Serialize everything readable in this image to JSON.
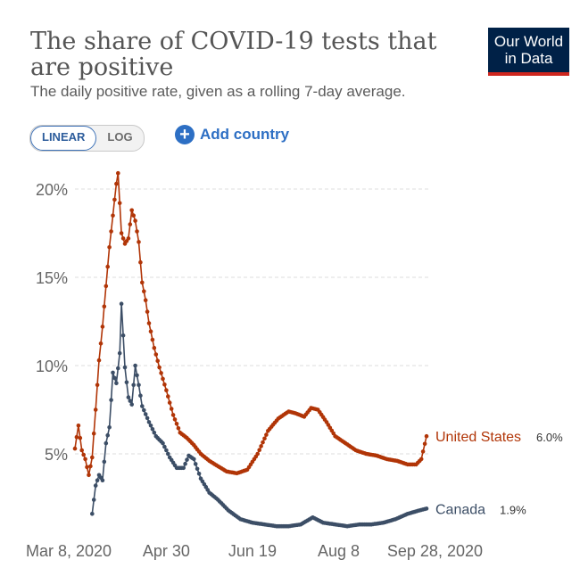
{
  "header": {
    "title": "The share of COVID-19 tests that are positive",
    "subtitle": "The daily positive rate, given as a rolling 7-day average."
  },
  "logo": {
    "line1": "Our World",
    "line2": "in Data",
    "bg_color": "#002147",
    "accent_color": "#ce261e"
  },
  "controls": {
    "linear_label": "LINEAR",
    "log_label": "LOG",
    "active_scale": "linear",
    "add_country_label": "Add country",
    "accent_color": "#2d6fc4"
  },
  "chart_data": {
    "type": "line",
    "title": "The share of COVID-19 tests that are positive",
    "subtitle": "The daily positive rate, given as a rolling 7-day average.",
    "xlabel": "",
    "ylabel": "",
    "x_ticks": [
      "Mar 8, 2020",
      "Apr 30",
      "Jun 19",
      "Aug 8",
      "Sep 28, 2020"
    ],
    "x_range": [
      "2020-03-08",
      "2020-09-28"
    ],
    "y_ticks": [
      "5%",
      "10%",
      "15%",
      "20%"
    ],
    "ylim": [
      0,
      21
    ],
    "y_unit": "%",
    "grid": "horizontal dashed",
    "legend": "end-of-line labels",
    "series": [
      {
        "name": "United States",
        "color": "#b13507",
        "end_label": "6.0%",
        "points": [
          [
            "2020-03-08",
            5.3
          ],
          [
            "2020-03-10",
            6.6
          ],
          [
            "2020-03-12",
            5.2
          ],
          [
            "2020-03-14",
            4.7
          ],
          [
            "2020-03-16",
            3.8
          ],
          [
            "2020-03-18",
            4.8
          ],
          [
            "2020-03-20",
            7.5
          ],
          [
            "2020-03-22",
            10.3
          ],
          [
            "2020-03-24",
            12.2
          ],
          [
            "2020-03-26",
            14.5
          ],
          [
            "2020-03-28",
            16.7
          ],
          [
            "2020-03-30",
            18.5
          ],
          [
            "2020-04-01",
            20.3
          ],
          [
            "2020-04-02",
            20.9
          ],
          [
            "2020-04-04",
            17.5
          ],
          [
            "2020-04-06",
            16.9
          ],
          [
            "2020-04-08",
            17.2
          ],
          [
            "2020-04-10",
            18.8
          ],
          [
            "2020-04-12",
            18.2
          ],
          [
            "2020-04-14",
            17.0
          ],
          [
            "2020-04-16",
            14.7
          ],
          [
            "2020-04-18",
            13.7
          ],
          [
            "2020-04-20",
            12.4
          ],
          [
            "2020-04-23",
            11.0
          ],
          [
            "2020-04-26",
            9.9
          ],
          [
            "2020-04-30",
            8.6
          ],
          [
            "2020-05-04",
            7.2
          ],
          [
            "2020-05-08",
            6.2
          ],
          [
            "2020-05-12",
            5.9
          ],
          [
            "2020-05-16",
            5.5
          ],
          [
            "2020-05-20",
            5.0
          ],
          [
            "2020-05-25",
            4.6
          ],
          [
            "2020-05-30",
            4.3
          ],
          [
            "2020-06-04",
            4.0
          ],
          [
            "2020-06-10",
            3.9
          ],
          [
            "2020-06-16",
            4.1
          ],
          [
            "2020-06-22",
            5.0
          ],
          [
            "2020-06-28",
            6.3
          ],
          [
            "2020-07-04",
            7.0
          ],
          [
            "2020-07-10",
            7.4
          ],
          [
            "2020-07-14",
            7.3
          ],
          [
            "2020-07-19",
            7.1
          ],
          [
            "2020-07-23",
            7.6
          ],
          [
            "2020-07-27",
            7.5
          ],
          [
            "2020-08-01",
            6.8
          ],
          [
            "2020-08-06",
            6.0
          ],
          [
            "2020-08-12",
            5.6
          ],
          [
            "2020-08-18",
            5.2
          ],
          [
            "2020-08-24",
            5.0
          ],
          [
            "2020-08-30",
            4.9
          ],
          [
            "2020-09-05",
            4.7
          ],
          [
            "2020-09-11",
            4.6
          ],
          [
            "2020-09-17",
            4.4
          ],
          [
            "2020-09-22",
            4.4
          ],
          [
            "2020-09-25",
            4.7
          ],
          [
            "2020-09-28",
            6.0
          ]
        ]
      },
      {
        "name": "Canada",
        "color": "#3c4e66",
        "end_label": "1.9%",
        "points": [
          [
            "2020-03-18",
            1.6
          ],
          [
            "2020-03-20",
            3.2
          ],
          [
            "2020-03-22",
            3.8
          ],
          [
            "2020-03-24",
            3.5
          ],
          [
            "2020-03-26",
            5.6
          ],
          [
            "2020-03-28",
            6.5
          ],
          [
            "2020-03-30",
            9.6
          ],
          [
            "2020-04-01",
            9.0
          ],
          [
            "2020-04-03",
            10.7
          ],
          [
            "2020-04-04",
            13.5
          ],
          [
            "2020-04-06",
            9.9
          ],
          [
            "2020-04-08",
            8.2
          ],
          [
            "2020-04-10",
            7.8
          ],
          [
            "2020-04-12",
            10.0
          ],
          [
            "2020-04-14",
            8.9
          ],
          [
            "2020-04-16",
            7.7
          ],
          [
            "2020-04-20",
            6.8
          ],
          [
            "2020-04-24",
            6.0
          ],
          [
            "2020-04-28",
            5.6
          ],
          [
            "2020-05-02",
            4.8
          ],
          [
            "2020-05-06",
            4.2
          ],
          [
            "2020-05-10",
            4.2
          ],
          [
            "2020-05-13",
            4.9
          ],
          [
            "2020-05-16",
            4.7
          ],
          [
            "2020-05-20",
            3.6
          ],
          [
            "2020-05-25",
            2.8
          ],
          [
            "2020-05-30",
            2.4
          ],
          [
            "2020-06-05",
            1.8
          ],
          [
            "2020-06-12",
            1.3
          ],
          [
            "2020-06-19",
            1.1
          ],
          [
            "2020-06-26",
            1.0
          ],
          [
            "2020-07-03",
            0.9
          ],
          [
            "2020-07-10",
            0.9
          ],
          [
            "2020-07-17",
            1.0
          ],
          [
            "2020-07-24",
            1.4
          ],
          [
            "2020-07-30",
            1.1
          ],
          [
            "2020-08-06",
            1.0
          ],
          [
            "2020-08-13",
            0.9
          ],
          [
            "2020-08-20",
            1.0
          ],
          [
            "2020-08-27",
            1.0
          ],
          [
            "2020-09-03",
            1.1
          ],
          [
            "2020-09-10",
            1.3
          ],
          [
            "2020-09-17",
            1.6
          ],
          [
            "2020-09-24",
            1.8
          ],
          [
            "2020-09-28",
            1.9
          ]
        ]
      }
    ]
  }
}
